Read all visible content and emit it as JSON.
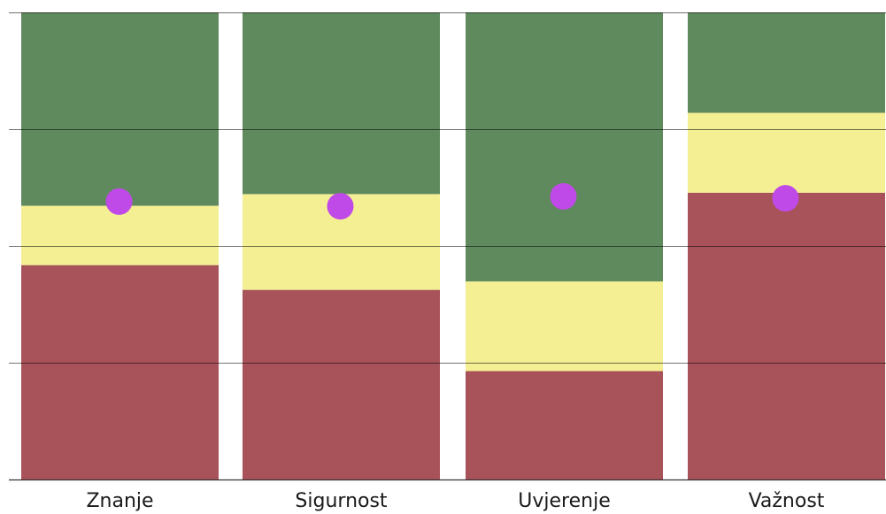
{
  "chart_data": {
    "type": "bar",
    "stacked": true,
    "categories": [
      "Znanje",
      "Sigurnost",
      "Uvjerenje",
      "Važnost"
    ],
    "ylim": [
      0,
      100
    ],
    "yticks": [
      0,
      25,
      50,
      75,
      100
    ],
    "grid": true,
    "series": [
      {
        "color": "#a8525a",
        "values": [
          45.9,
          40.6,
          23.2,
          61.4
        ]
      },
      {
        "color": "#f4ef92",
        "values": [
          12.7,
          20.5,
          19.2,
          17.1
        ]
      },
      {
        "color": "#5f8a5e",
        "values": [
          41.4,
          38.9,
          57.6,
          21.5
        ]
      }
    ],
    "markers": {
      "color": "#c04ae8",
      "values": [
        59.5,
        58.5,
        60.6,
        60.2
      ]
    }
  }
}
